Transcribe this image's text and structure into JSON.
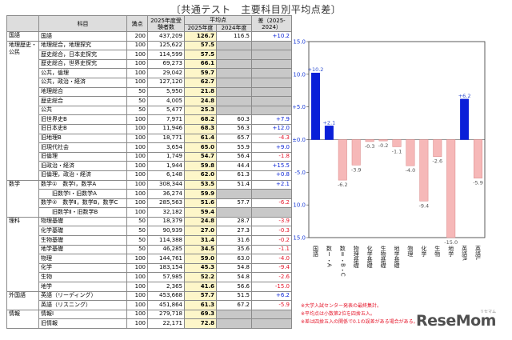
{
  "title": "〔共通テスト　主要科目別平均点差〕",
  "table": {
    "headers": {
      "category": "",
      "subject": "科目",
      "max": "満点",
      "examinees": "2025年度受験者数",
      "average": "平均点",
      "avg2025": "2025年度",
      "avg2024": "2024年度",
      "diff": "差（2025-2024）"
    },
    "rows": [
      {
        "cat": "国語",
        "subject": "国語",
        "indent": 0,
        "max": "200",
        "n": "437,209",
        "a25": "126.7",
        "a24": "116.5",
        "d": "+10.2",
        "s": "pos"
      },
      {
        "cat": "地理歴史・公民",
        "subject": "地理総合，地理探究",
        "indent": 0,
        "max": "100",
        "n": "125,622",
        "a25": "57.5",
        "a24": "",
        "d": "",
        "s": "na"
      },
      {
        "cat": "",
        "subject": "歴史総合，日本史探究",
        "indent": 0,
        "max": "100",
        "n": "114,599",
        "a25": "57.5",
        "a24": "",
        "d": "",
        "s": "na"
      },
      {
        "cat": "",
        "subject": "歴史総合，世界史探究",
        "indent": 0,
        "max": "100",
        "n": "69,273",
        "a25": "66.1",
        "a24": "",
        "d": "",
        "s": "na"
      },
      {
        "cat": "",
        "subject": "公共，倫理",
        "indent": 0,
        "max": "100",
        "n": "29,042",
        "a25": "59.7",
        "a24": "",
        "d": "",
        "s": "na"
      },
      {
        "cat": "",
        "subject": "公共，政治・経済",
        "indent": 0,
        "max": "100",
        "n": "127,120",
        "a25": "62.7",
        "a24": "",
        "d": "",
        "s": "na"
      },
      {
        "cat": "",
        "subject": "地理総合",
        "indent": 0,
        "max": "50",
        "n": "5,950",
        "a25": "21.8",
        "a24": "",
        "d": "",
        "s": "na"
      },
      {
        "cat": "",
        "subject": "歴史総合",
        "indent": 0,
        "max": "50",
        "n": "4,005",
        "a25": "24.8",
        "a24": "",
        "d": "",
        "s": "na"
      },
      {
        "cat": "",
        "subject": "公共",
        "indent": 0,
        "max": "50",
        "n": "5,477",
        "a25": "25.3",
        "a24": "",
        "d": "",
        "s": "na"
      },
      {
        "cat": "",
        "subject": "旧世界史B",
        "indent": 0,
        "max": "100",
        "n": "7,971",
        "a25": "68.2",
        "a24": "60.3",
        "d": "+7.9",
        "s": "pos"
      },
      {
        "cat": "",
        "subject": "旧日本史B",
        "indent": 0,
        "max": "100",
        "n": "11,946",
        "a25": "68.3",
        "a24": "56.3",
        "d": "+12.0",
        "s": "pos"
      },
      {
        "cat": "",
        "subject": "旧地理B",
        "indent": 0,
        "max": "100",
        "n": "18,771",
        "a25": "61.4",
        "a24": "65.7",
        "d": "-4.3",
        "s": "neg"
      },
      {
        "cat": "",
        "subject": "旧現代社会",
        "indent": 0,
        "max": "100",
        "n": "3,654",
        "a25": "65.0",
        "a24": "55.9",
        "d": "+9.0",
        "s": "pos"
      },
      {
        "cat": "",
        "subject": "旧倫理",
        "indent": 0,
        "max": "100",
        "n": "1,749",
        "a25": "54.7",
        "a24": "56.4",
        "d": "-1.8",
        "s": "neg"
      },
      {
        "cat": "",
        "subject": "旧政治・経済",
        "indent": 0,
        "max": "100",
        "n": "1,944",
        "a25": "59.8",
        "a24": "44.4",
        "d": "+15.5",
        "s": "pos"
      },
      {
        "cat": "",
        "subject": "旧倫理，政治・経済",
        "indent": 0,
        "max": "100",
        "n": "6,148",
        "a25": "62.0",
        "a24": "61.3",
        "d": "+0.8",
        "s": "pos"
      },
      {
        "cat": "数学",
        "subject": "数学①　数学Ⅰ，数学A",
        "indent": 0,
        "max": "100",
        "n": "308,344",
        "a25": "53.5",
        "a24": "51.4",
        "d": "+2.1",
        "s": "pos"
      },
      {
        "cat": "",
        "subject": "旧数学Ⅰ・旧数学A",
        "indent": 1,
        "max": "100",
        "n": "36,274",
        "a25": "59.9",
        "a24": "",
        "d": "",
        "s": "na"
      },
      {
        "cat": "",
        "subject": "数学②　数学Ⅱ，数学B，数学C",
        "indent": 0,
        "max": "100",
        "n": "285,563",
        "a25": "51.6",
        "a24": "57.7",
        "d": "-6.2",
        "s": "neg"
      },
      {
        "cat": "",
        "subject": "旧数学Ⅱ・旧数学B",
        "indent": 1,
        "max": "100",
        "n": "32,182",
        "a25": "59.4",
        "a24": "",
        "d": "",
        "s": "na"
      },
      {
        "cat": "理科",
        "subject": "物理基礎",
        "indent": 0,
        "max": "50",
        "n": "18,379",
        "a25": "24.8",
        "a24": "28.7",
        "d": "-3.9",
        "s": "neg"
      },
      {
        "cat": "",
        "subject": "化学基礎",
        "indent": 0,
        "max": "50",
        "n": "90,939",
        "a25": "27.0",
        "a24": "27.3",
        "d": "-0.3",
        "s": "neg"
      },
      {
        "cat": "",
        "subject": "生物基礎",
        "indent": 0,
        "max": "50",
        "n": "114,388",
        "a25": "31.4",
        "a24": "31.6",
        "d": "-0.2",
        "s": "neg"
      },
      {
        "cat": "",
        "subject": "地学基礎",
        "indent": 0,
        "max": "50",
        "n": "46,285",
        "a25": "34.5",
        "a24": "35.6",
        "d": "-1.1",
        "s": "neg"
      },
      {
        "cat": "",
        "subject": "物理",
        "indent": 0,
        "max": "100",
        "n": "144,761",
        "a25": "59.0",
        "a24": "63.0",
        "d": "-4.0",
        "s": "neg"
      },
      {
        "cat": "",
        "subject": "化学",
        "indent": 0,
        "max": "100",
        "n": "183,154",
        "a25": "45.3",
        "a24": "54.8",
        "d": "-9.4",
        "s": "neg"
      },
      {
        "cat": "",
        "subject": "生物",
        "indent": 0,
        "max": "100",
        "n": "57,985",
        "a25": "52.2",
        "a24": "54.8",
        "d": "-2.6",
        "s": "neg"
      },
      {
        "cat": "",
        "subject": "地学",
        "indent": 0,
        "max": "100",
        "n": "2,365",
        "a25": "41.6",
        "a24": "56.6",
        "d": "-15.0",
        "s": "neg"
      },
      {
        "cat": "外国語",
        "subject": "英語（リーディング）",
        "indent": 0,
        "max": "100",
        "n": "453,668",
        "a25": "57.7",
        "a24": "51.5",
        "d": "+6.2",
        "s": "pos"
      },
      {
        "cat": "",
        "subject": "英語（リスニング）",
        "indent": 0,
        "max": "100",
        "n": "451,864",
        "a25": "61.3",
        "a24": "67.2",
        "d": "-5.9",
        "s": "neg"
      },
      {
        "cat": "情報",
        "subject": "情報Ⅰ",
        "indent": 0,
        "max": "100",
        "n": "279,718",
        "a25": "69.3",
        "a24": "",
        "d": "",
        "s": "na"
      },
      {
        "cat": "",
        "subject": "旧情報",
        "indent": 0,
        "max": "100",
        "n": "22,171",
        "a25": "72.8",
        "a24": "",
        "d": "",
        "s": "na"
      }
    ]
  },
  "chart_data": {
    "type": "bar",
    "categories": [
      "国語",
      "数Ⅰ・A",
      "数Ⅱ・B・C",
      "物理基礎",
      "化学基礎",
      "生物基礎",
      "地学基礎",
      "物理",
      "化学",
      "生物",
      "地学",
      "英語R",
      "英語L"
    ],
    "values": [
      10.2,
      2.1,
      -6.2,
      -3.9,
      -0.3,
      -0.2,
      -1.1,
      -4.0,
      -9.4,
      -2.6,
      -15.0,
      6.2,
      -5.9
    ],
    "value_labels": [
      "+10.2",
      "+2.1",
      "-6.2",
      "-3.9",
      "-0.3",
      "-0.2",
      "-1.1",
      "-4.0",
      "-9.4",
      "-2.6",
      "-15.0",
      "+6.2",
      "-5.9"
    ],
    "yticks": [
      "+15.0",
      "+10.0",
      "+5.0",
      "±0.0",
      "-5.0",
      "-10.0",
      "-15.0"
    ],
    "ylim": [
      -15,
      15
    ],
    "colors": {
      "positive": "#0a1fd8",
      "negative": "#f6b8b8",
      "negative_stroke": "#d98888",
      "pos_label": "#2f4fd0",
      "neg_label": "#555555"
    },
    "grid": false
  },
  "notes": [
    "※大学入試センター発表の最終集計。",
    "※平均点は小数第2位を四捨五入。",
    "※差は四捨五入の関係で0.1の誤差がある場合がある。"
  ],
  "logo": {
    "text": "ReseMom",
    "sub": "リセマム"
  }
}
